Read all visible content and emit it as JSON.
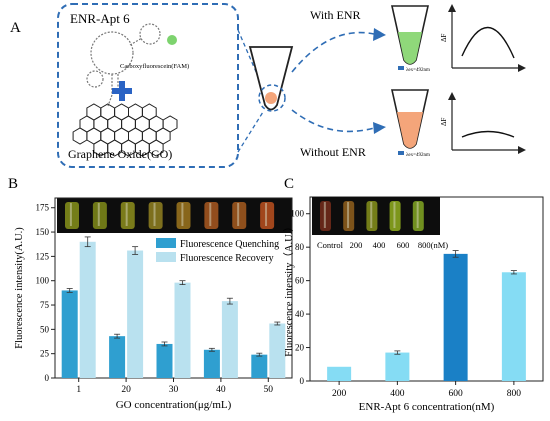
{
  "panel_a": {
    "label": "A",
    "aptamer_title": "ENR-Apt 6",
    "fam_label": "Carboxyfluorescein(FAM)",
    "go_label": "Graphene Oxide(GO)",
    "with_label": "With ENR",
    "without_label": "Without ENR",
    "lambda_label_top": "λex=492nm",
    "lambda_label_bottom": "λex=492nm",
    "delta_f_label": "ΔF",
    "colors": {
      "dash_blue": "#2f6db5",
      "plus_blue": "#2a63c4",
      "green_fluor": "#8fd87a",
      "orange_fluor": "#f4a57a"
    }
  },
  "panel_b": {
    "label": "B",
    "tube_strip_colors": [
      "#7f8a1a",
      "#7a8418",
      "#86871c",
      "#8a7a1f",
      "#96701d",
      "#a1541f",
      "#9c561e",
      "#b14c1e"
    ]
  },
  "panel_c": {
    "label": "C",
    "tube_labels": [
      "Control",
      "200",
      "400",
      "600",
      "800(nM)"
    ],
    "tube_strip_colors": [
      "#6f2a1a",
      "#8a5b1c",
      "#7f8a1a",
      "#8aa51d",
      "#7b9d21"
    ]
  },
  "chart_data": [
    {
      "type": "bar",
      "categories": [
        "1",
        "20",
        "30",
        "40",
        "50"
      ],
      "series": [
        {
          "name": "Fluorescence Quenching",
          "values": [
            90,
            43,
            35,
            29,
            24
          ],
          "errors": [
            2,
            2,
            2,
            1.5,
            1.5
          ],
          "color": "#2f9fd0"
        },
        {
          "name": "Fluorescence Recovery",
          "values": [
            140,
            131,
            98,
            79,
            56
          ],
          "errors": [
            5,
            4,
            2,
            3,
            1.5
          ],
          "color": "#b9e1ef"
        }
      ],
      "xlabel": "GO concentration(μg/mL)",
      "ylabel": "Fluorescence intensity(A.U.)",
      "ylim": [
        0,
        185
      ],
      "yticks": [
        0,
        25,
        50,
        75,
        100,
        125,
        150,
        175
      ],
      "legend": "top-right"
    },
    {
      "type": "bar",
      "categories": [
        "200",
        "400",
        "600",
        "800"
      ],
      "values": [
        8.5,
        17,
        76,
        65
      ],
      "errors": [
        0,
        1,
        2,
        1
      ],
      "colors": [
        "#85dcf4",
        "#85dcf4",
        "#1a80c6",
        "#85dcf4"
      ],
      "xlabel": "ENR-Apt 6 concentration(nM)",
      "ylabel": "Fluorescence intensity（A.U.）",
      "ylim": [
        0,
        110
      ],
      "yticks": [
        0,
        20,
        40,
        60,
        80,
        100
      ]
    }
  ]
}
